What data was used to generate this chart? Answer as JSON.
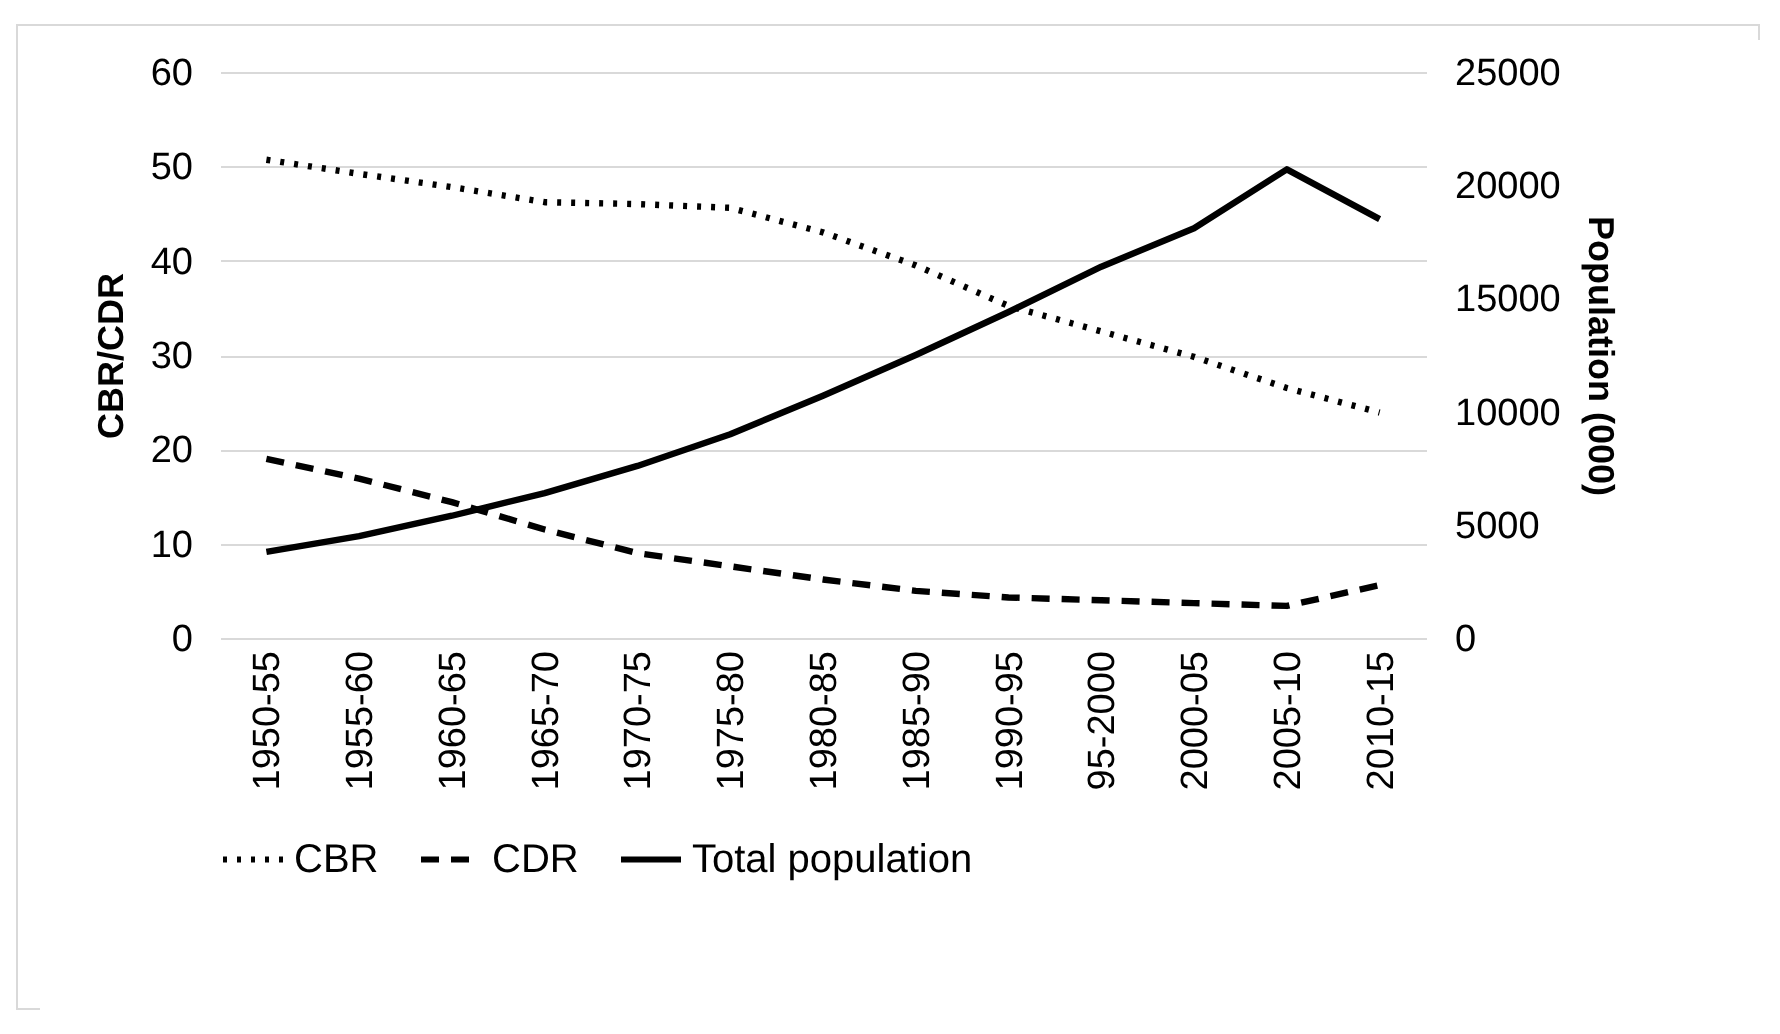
{
  "chart_data": {
    "type": "line",
    "categories": [
      "1950-55",
      "1955-60",
      "1960-65",
      "1965-70",
      "1970-75",
      "1975-80",
      "1980-85",
      "1985-90",
      "1990-95",
      "95-2000",
      "2000-05",
      "2005-10",
      "2010-15"
    ],
    "series": [
      {
        "name": "CBR",
        "color": "#000000",
        "line_style": "dotted",
        "values": [
          50.7,
          49.2,
          47.8,
          46.2,
          46,
          45.6,
          43,
          39.5,
          35.2,
          32.5,
          29.8,
          26.5,
          23.9
        ]
      },
      {
        "name": "CDR",
        "color": "#000000",
        "line_style": "dashed",
        "values": [
          19,
          16.9,
          14.4,
          11.5,
          9,
          7.6,
          6.2,
          5,
          4.3,
          4,
          3.7,
          3.4,
          5.6
        ]
      },
      {
        "name": "Total population",
        "color": "#000000",
        "line_style": "solid",
        "axis": "y2",
        "values": [
          3800,
          4500,
          5400,
          6400,
          7600,
          9000,
          10700,
          12500,
          14400,
          16400,
          18100,
          20700,
          18500
        ]
      }
    ],
    "ylabel": "CBR/CDR",
    "y2label": "Population (000)",
    "ylim": [
      0,
      60
    ],
    "yticks": [
      0,
      10,
      20,
      30,
      40,
      50,
      60
    ],
    "y2lim": [
      0,
      25000
    ],
    "y2ticks": [
      0,
      5000,
      10000,
      15000,
      20000,
      25000
    ],
    "grid": "y",
    "legend": "bottom"
  }
}
